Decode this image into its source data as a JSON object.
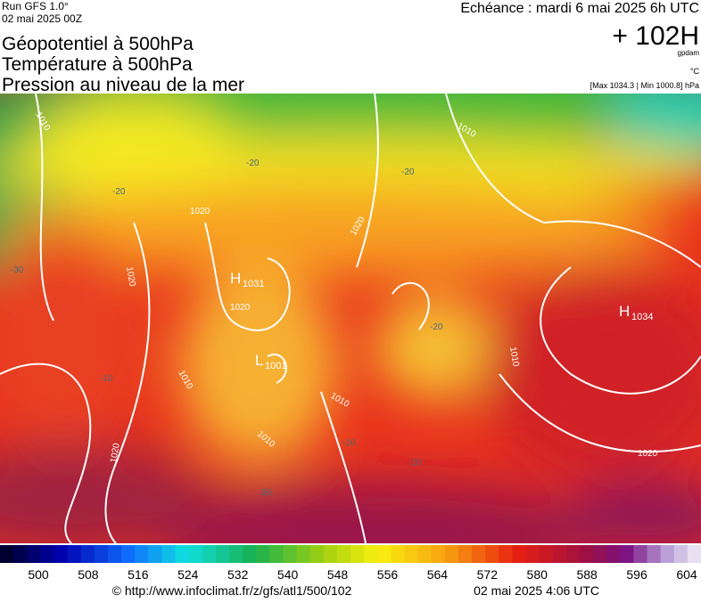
{
  "header": {
    "run": "Run GFS 1.0°",
    "date": "02 mai 2025 00Z",
    "title_lines": [
      "Géopotentiel à 500hPa",
      "Température à 500hPa",
      "Pression au niveau de la mer"
    ],
    "forecast": "Echéance : mardi 6 mai 2025 6h UTC",
    "step": "+ 102H",
    "step_unit": "gpdam",
    "temp_unit": "°C",
    "extremes": "[Max 1034.3 | Min 1000.8] hPa"
  },
  "map": {
    "highs": [
      {
        "letter": "H",
        "value": "1031"
      },
      {
        "letter": "H",
        "value": "1034"
      }
    ],
    "lows": [
      {
        "letter": "L",
        "value": "1001"
      }
    ],
    "isobar_labels": [
      "1010",
      "1020",
      "1010",
      "1020",
      "1020",
      "1020",
      "1010",
      "1010",
      "1010",
      "1020",
      "1020",
      "1010"
    ],
    "temperature_labels": [
      "-20",
      "-20",
      "-20",
      "-30",
      "-20",
      "-10",
      "-10",
      "-10",
      "-20"
    ]
  },
  "legend": {
    "ticks": [
      500,
      508,
      516,
      524,
      532,
      540,
      548,
      556,
      564,
      572,
      580,
      588,
      596,
      604
    ]
  },
  "footer": {
    "source": "© http://www.infoclimat.fr/z/gfs/atl1/500/102",
    "generated": "02 mai 2025  4:06 UTC"
  }
}
